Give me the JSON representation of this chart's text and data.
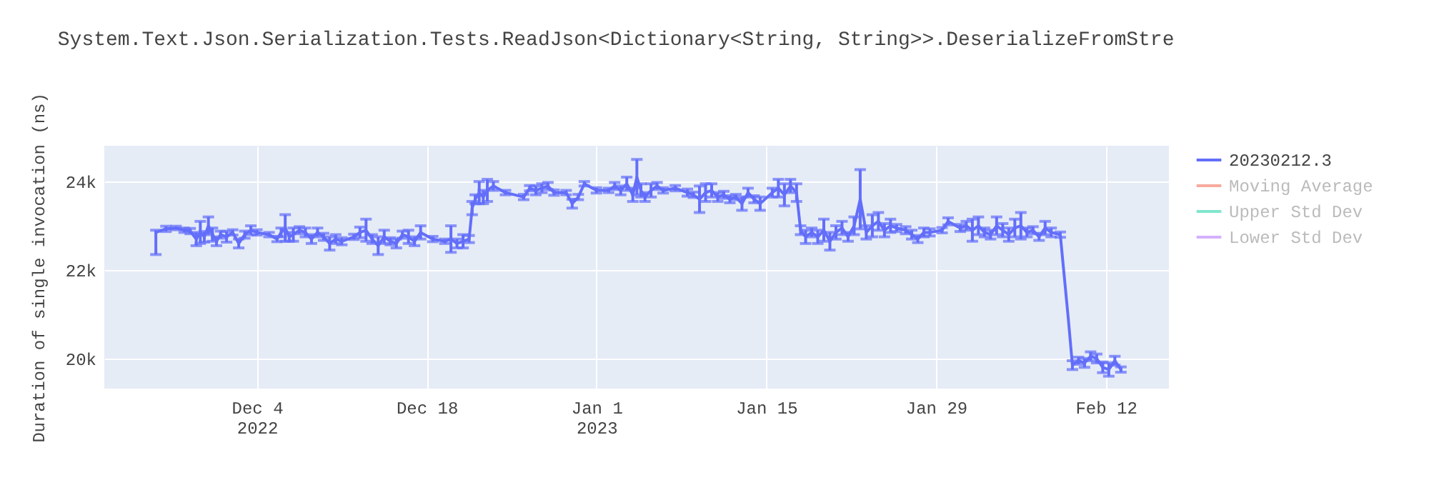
{
  "chart_data": {
    "type": "line",
    "title": "System.Text.Json.Serialization.Tests.ReadJson<Dictionary<String, String>>.DeserializeFromStre",
    "ylabel": "Duration of single invocation (ns)",
    "xlim": [
      "2022-11-21T10:00",
      "2023-02-17T05:00"
    ],
    "xticks": [
      {
        "value": "2022-12-04",
        "label": "Dec 4\n2022"
      },
      {
        "value": "2022-12-18",
        "label": "Dec 18"
      },
      {
        "value": "2023-01-01",
        "label": "Jan 1\n2023"
      },
      {
        "value": "2023-01-15",
        "label": "Jan 15"
      },
      {
        "value": "2023-01-29",
        "label": "Jan 29"
      },
      {
        "value": "2023-02-12",
        "label": "Feb 12"
      }
    ],
    "ylim": [
      19320,
      24810
    ],
    "yticks": [
      {
        "value": 20000,
        "label": "20k"
      },
      {
        "value": 22000,
        "label": "22k"
      },
      {
        "value": 24000,
        "label": "24k"
      }
    ],
    "grid": true,
    "legend": "top right",
    "marker": "none",
    "line_style": "solid",
    "series": [
      {
        "name": "20230212.3",
        "color": "#636efa",
        "x": [
          "2022-11-25T16:00",
          "2022-11-26T12:00",
          "2022-11-27T08:00",
          "2022-11-28T00:00",
          "2022-11-28T12:00",
          "2022-11-29T00:00",
          "2022-11-29T08:00",
          "2022-11-29T16:00",
          "2022-11-30T00:00",
          "2022-11-30T08:00",
          "2022-11-30T16:00",
          "2022-12-01T00:00",
          "2022-12-01T12:00",
          "2022-12-02T00:00",
          "2022-12-02T12:00",
          "2022-12-03T00:00",
          "2022-12-03T12:00",
          "2022-12-04T00:00",
          "2022-12-05T00:00",
          "2022-12-05T16:00",
          "2022-12-06T00:00",
          "2022-12-06T08:00",
          "2022-12-06T16:00",
          "2022-12-07T00:00",
          "2022-12-07T12:00",
          "2022-12-08T00:00",
          "2022-12-08T12:00",
          "2022-12-09T00:00",
          "2022-12-09T12:00",
          "2022-12-10T00:00",
          "2022-12-10T12:00",
          "2022-12-11T00:00",
          "2022-12-12T00:00",
          "2022-12-12T12:00",
          "2022-12-13T00:00",
          "2022-12-13T12:00",
          "2022-12-14T00:00",
          "2022-12-14T12:00",
          "2022-12-15T00:00",
          "2022-12-15T12:00",
          "2022-12-16T00:00",
          "2022-12-16T12:00",
          "2022-12-17T00:00",
          "2022-12-17T12:00",
          "2022-12-18T12:00",
          "2022-12-19T12:00",
          "2022-12-20T00:00",
          "2022-12-20T12:00",
          "2022-12-21T00:00",
          "2022-12-21T12:00",
          "2022-12-21T18:00",
          "2022-12-22T00:00",
          "2022-12-22T08:00",
          "2022-12-22T16:00",
          "2022-12-23T00:00",
          "2022-12-23T12:00",
          "2022-12-24T12:00",
          "2022-12-26T00:00",
          "2022-12-26T12:00",
          "2022-12-27T00:00",
          "2022-12-27T12:00",
          "2022-12-28T00:00",
          "2022-12-28T12:00",
          "2022-12-29T12:00",
          "2022-12-30T00:00",
          "2022-12-30T12:00",
          "2022-12-31T00:00",
          "2023-01-01T00:00",
          "2023-01-02T00:00",
          "2023-01-02T12:00",
          "2023-01-03T00:00",
          "2023-01-03T12:00",
          "2023-01-04T00:00",
          "2023-01-04T08:00",
          "2023-01-04T16:00",
          "2023-01-05T00:00",
          "2023-01-05T12:00",
          "2023-01-06T00:00",
          "2023-01-06T12:00",
          "2023-01-07T12:00",
          "2023-01-08T12:00",
          "2023-01-09T00:00",
          "2023-01-09T12:00",
          "2023-01-10T00:00",
          "2023-01-10T12:00",
          "2023-01-11T00:00",
          "2023-01-11T12:00",
          "2023-01-12T00:00",
          "2023-01-12T12:00",
          "2023-01-13T00:00",
          "2023-01-13T12:00",
          "2023-01-14T00:00",
          "2023-01-14T12:00",
          "2023-01-15T12:00",
          "2023-01-16T00:00",
          "2023-01-16T12:00",
          "2023-01-17T00:00",
          "2023-01-17T12:00",
          "2023-01-17T20:00",
          "2023-01-18T06:00",
          "2023-01-18T18:00",
          "2023-01-19T06:00",
          "2023-01-19T18:00",
          "2023-01-20T06:00",
          "2023-01-20T18:00",
          "2023-01-21T06:00",
          "2023-01-21T18:00",
          "2023-01-22T06:00",
          "2023-01-22T18:00",
          "2023-01-23T06:00",
          "2023-01-23T18:00",
          "2023-01-24T06:00",
          "2023-01-24T18:00",
          "2023-01-25T06:00",
          "2023-01-25T18:00",
          "2023-01-26T12:00",
          "2023-01-27T00:00",
          "2023-01-27T12:00",
          "2023-01-28T00:00",
          "2023-01-28T12:00",
          "2023-01-29T12:00",
          "2023-01-30T00:00",
          "2023-01-31T00:00",
          "2023-01-31T12:00",
          "2023-02-01T00:00",
          "2023-02-01T12:00",
          "2023-02-02T00:00",
          "2023-02-02T12:00",
          "2023-02-03T00:00",
          "2023-02-03T12:00",
          "2023-02-04T00:00",
          "2023-02-04T12:00",
          "2023-02-05T00:00",
          "2023-02-05T12:00",
          "2023-02-06T00:00",
          "2023-02-06T12:00",
          "2023-02-07T00:00",
          "2023-02-07T12:00",
          "2023-02-08T06:00",
          "2023-02-08T22:00",
          "2023-02-09T06:00",
          "2023-02-09T18:00",
          "2023-02-10T06:00",
          "2023-02-10T18:00",
          "2023-02-11T06:00",
          "2023-02-11T18:00",
          "2023-02-12T06:00",
          "2023-02-12T18:00",
          "2023-02-13T06:00"
        ],
        "values": [
          22850,
          22930,
          22950,
          22900,
          22880,
          22700,
          22850,
          22750,
          23000,
          22800,
          22650,
          22800,
          22750,
          22850,
          22600,
          22800,
          22900,
          22850,
          22800,
          22700,
          22850,
          22950,
          22750,
          22800,
          22900,
          22850,
          22700,
          22850,
          22750,
          22600,
          22700,
          22650,
          22750,
          22850,
          22900,
          22700,
          22550,
          22750,
          22650,
          22600,
          22800,
          22750,
          22650,
          22850,
          22700,
          22650,
          22700,
          22600,
          22650,
          22700,
          23400,
          23600,
          23750,
          23650,
          23800,
          23900,
          23750,
          23650,
          23850,
          23800,
          23850,
          23900,
          23750,
          23750,
          23500,
          23650,
          23950,
          23800,
          23800,
          23900,
          23800,
          23950,
          23700,
          24100,
          23800,
          23650,
          23800,
          23900,
          23800,
          23850,
          23750,
          23700,
          23600,
          23750,
          23800,
          23650,
          23700,
          23600,
          23650,
          23500,
          23750,
          23600,
          23500,
          23750,
          23850,
          23700,
          23900,
          23750,
          22900,
          22750,
          22850,
          22750,
          22900,
          22650,
          22850,
          22950,
          22750,
          23000,
          23600,
          22850,
          23000,
          23100,
          22900,
          23000,
          22950,
          22900,
          22800,
          22700,
          22850,
          22850,
          22900,
          23100,
          22950,
          23000,
          22900,
          23000,
          22850,
          22800,
          23000,
          22900,
          22800,
          22950,
          23000,
          22850,
          22900,
          22750,
          22950,
          22850,
          22800,
          20880,
          19850,
          19950,
          19900,
          20050,
          20000,
          19800,
          19750,
          19950,
          19750
        ],
        "errors": [
          [
            22350,
            22900
          ],
          60,
          40,
          50,
          60,
          150,
          250,
          120,
          200,
          150,
          100,
          80,
          120,
          60,
          100,
          80,
          100,
          60,
          50,
          60,
          100,
          300,
          100,
          150,
          80,
          100,
          100,
          100,
          80,
          150,
          100,
          80,
          60,
          120,
          250,
          100,
          200,
          150,
          80,
          100,
          80,
          150,
          100,
          150,
          60,
          50,
          300,
          100,
          150,
          80,
          150,
          100,
          250,
          150,
          250,
          100,
          50,
          60,
          60,
          100,
          100,
          80,
          60,
          50,
          100,
          60,
          50,
          60,
          50,
          80,
          100,
          150,
          150,
          400,
          150,
          100,
          150,
          80,
          60,
          60,
          80,
          60,
          300,
          200,
          150,
          100,
          80,
          80,
          60,
          150,
          100,
          80,
          150,
          100,
          200,
          250,
          150,
          200,
          100,
          150,
          100,
          150,
          250,
          200,
          150,
          150,
          100,
          200,
          [
            22930,
            24270
          ],
          150,
          250,
          200,
          150,
          150,
          80,
          80,
          100,
          80,
          100,
          80,
          60,
          80,
          80,
          100,
          250,
          200,
          100,
          100,
          200,
          150,
          150,
          200,
          300,
          100,
          80,
          80,
          150,
          100,
          60,
          null,
          100,
          80,
          100,
          100,
          100,
          120,
          150,
          100,
          60
        ]
      },
      {
        "name": "Moving Average",
        "color": "#f7aa9d"
      },
      {
        "name": "Upper Std Dev",
        "color": "#80e6cb"
      },
      {
        "name": "Lower Std Dev",
        "color": "#d5b1fd"
      }
    ]
  }
}
